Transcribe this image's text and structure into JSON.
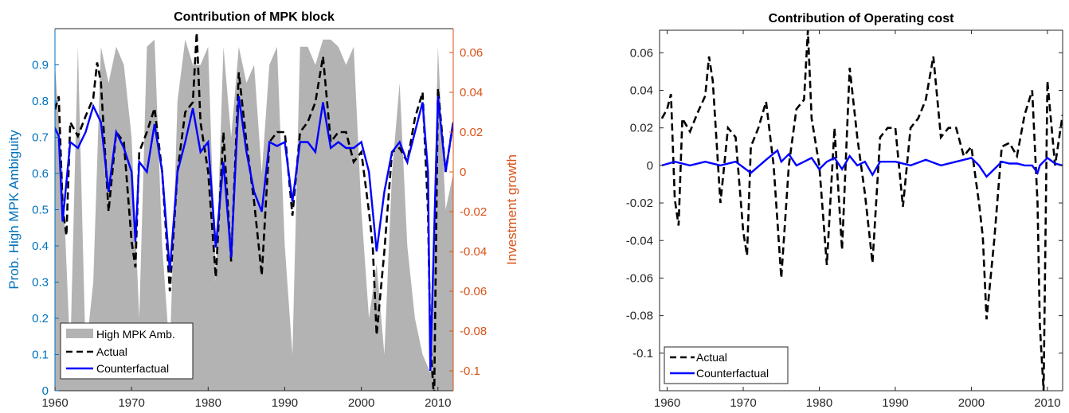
{
  "chart_data": [
    {
      "type": "area+line",
      "title": "Contribution of MPK block",
      "ylabel_left": "Prob. High MPK Ambiguity",
      "ylabel_right": "Investment growth",
      "xlim": [
        1960,
        2012
      ],
      "ylim_left": [
        0,
        1
      ],
      "ylim_right": [
        -0.11,
        0.072
      ],
      "xticks": [
        "1960",
        "1970",
        "1980",
        "1990",
        "2000",
        "2010"
      ],
      "yticks_left": [
        "0",
        "0.1",
        "0.2",
        "0.3",
        "0.4",
        "0.5",
        "0.6",
        "0.7",
        "0.8",
        "0.9"
      ],
      "yticks_right": [
        "-0.1",
        "-0.08",
        "-0.06",
        "-0.04",
        "-0.02",
        "0",
        "0.02",
        "0.04",
        "0.06"
      ],
      "colors": {
        "left_axis": "#0072BD",
        "right_axis": "#D95319",
        "area": "#B3B3B3",
        "actual": "#000000",
        "counterfactual": "#0000FF"
      },
      "legend": {
        "placement": "bottom-left",
        "entries": [
          "High MPK Amb.",
          "Actual",
          "Counterfactual"
        ]
      },
      "area_series": {
        "name": "High MPK Amb.",
        "x": [
          1960,
          1961,
          1962,
          1963,
          1964,
          1965,
          1966,
          1967,
          1968,
          1969,
          1970,
          1971,
          1972,
          1973,
          1974,
          1975,
          1976,
          1977,
          1978,
          1979,
          1980,
          1981,
          1982,
          1983,
          1984,
          1985,
          1986,
          1987,
          1988,
          1989,
          1990,
          1991,
          1992,
          1993,
          1994,
          1995,
          1996,
          1997,
          1998,
          1999,
          2000,
          2001,
          2002,
          2003,
          2004,
          2005,
          2006,
          2007,
          2008,
          2009,
          2010,
          2011,
          2012
        ],
        "values": [
          0.9,
          0.6,
          0.1,
          0.95,
          0.1,
          0.3,
          0.95,
          0.85,
          0.95,
          0.9,
          0.7,
          0.2,
          0.95,
          0.97,
          0.4,
          0.1,
          0.8,
          0.97,
          0.9,
          0.9,
          0.95,
          0.3,
          0.95,
          0.7,
          0.95,
          0.85,
          0.9,
          0.6,
          0.9,
          0.95,
          0.4,
          0.1,
          0.95,
          0.95,
          0.9,
          0.97,
          0.97,
          0.95,
          0.9,
          0.95,
          0.5,
          0.2,
          0.35,
          0.1,
          0.6,
          0.85,
          0.4,
          0.2,
          0.1,
          0.05,
          0.95,
          0.5,
          0.6
        ]
      },
      "series": [
        {
          "name": "Actual",
          "x": [
            1959.6,
            1960.5,
            1961,
            1961.5,
            1962,
            1963,
            1964,
            1965,
            1965.5,
            1966,
            1967,
            1968,
            1969,
            1970,
            1970.5,
            1971,
            1972,
            1973,
            1974,
            1975,
            1976,
            1977,
            1978,
            1978.5,
            1979,
            1980,
            1981,
            1982,
            1983,
            1984,
            1985,
            1986,
            1987,
            1988,
            1989,
            1990,
            1991,
            1992,
            1993,
            1994,
            1995,
            1996,
            1997,
            1998,
            1999,
            2000,
            2001,
            2001.5,
            2002,
            2003,
            2004,
            2005,
            2006,
            2007,
            2008,
            2008.7,
            2009,
            2009.5,
            2010,
            2011,
            2012
          ],
          "values": [
            0.026,
            0.038,
            -0.018,
            -0.032,
            0.025,
            0.018,
            0.028,
            0.037,
            0.055,
            0.045,
            -0.02,
            0.02,
            0.015,
            -0.035,
            -0.048,
            0.01,
            0.02,
            0.032,
            0.0,
            -0.06,
            0.0,
            0.03,
            0.035,
            0.07,
            0.025,
            0.0,
            -0.053,
            0.02,
            -0.045,
            0.05,
            0.015,
            -0.015,
            -0.052,
            0.015,
            0.02,
            0.02,
            -0.022,
            0.02,
            0.025,
            0.035,
            0.058,
            0.015,
            0.02,
            0.02,
            0.005,
            0.01,
            -0.02,
            -0.038,
            -0.082,
            -0.04,
            0.01,
            0.012,
            0.005,
            0.027,
            0.04,
            -0.02,
            -0.085,
            -0.115,
            0.042,
            0.0,
            0.025
          ]
        },
        {
          "name": "Counterfactual",
          "x": [
            1959.6,
            1960.5,
            1961,
            1962,
            1963,
            1964,
            1965,
            1966,
            1967,
            1968,
            1969,
            1970,
            1970.5,
            1971,
            1972,
            1973,
            1974,
            1975,
            1976,
            1977,
            1978,
            1979,
            1980,
            1981,
            1982,
            1983,
            1984,
            1985,
            1986,
            1987,
            1988,
            1989,
            1990,
            1991,
            1992,
            1993,
            1994,
            1995,
            1996,
            1997,
            1998,
            1999,
            2000,
            2001,
            2002,
            2003,
            2004,
            2005,
            2006,
            2007,
            2008,
            2008.7,
            2009,
            2010,
            2011,
            2012
          ],
          "values": [
            0.025,
            0.018,
            -0.025,
            0.015,
            0.012,
            0.02,
            0.033,
            0.025,
            -0.01,
            0.02,
            0.012,
            0.0,
            -0.035,
            0.005,
            0.0,
            0.024,
            0.0,
            -0.05,
            0.0,
            0.015,
            0.032,
            0.01,
            0.015,
            -0.038,
            0.005,
            -0.043,
            0.038,
            0.01,
            -0.01,
            -0.02,
            0.015,
            0.013,
            0.015,
            -0.015,
            0.015,
            0.015,
            0.01,
            0.035,
            0.012,
            0.015,
            0.012,
            0.012,
            0.015,
            0.0,
            -0.04,
            -0.01,
            0.01,
            0.015,
            0.005,
            0.02,
            0.035,
            0.0,
            -0.1,
            0.038,
            0.0,
            0.025
          ]
        }
      ]
    },
    {
      "type": "line",
      "title": "Contribution of Operating cost",
      "xlim": [
        1959,
        2012
      ],
      "ylim": [
        -0.12,
        0.072
      ],
      "xticks": [
        "1960",
        "1970",
        "1980",
        "1990",
        "2000",
        "2010"
      ],
      "yticks": [
        "-0.1",
        "-0.08",
        "-0.06",
        "-0.04",
        "-0.02",
        "0",
        "0.02",
        "0.04",
        "0.06"
      ],
      "colors": {
        "actual": "#000000",
        "counterfactual": "#0000FF"
      },
      "legend": {
        "placement": "bottom-left",
        "entries": [
          "Actual",
          "Counterfactual"
        ]
      },
      "series": [
        {
          "name": "Actual",
          "x": [
            1959.3,
            1960,
            1960.5,
            1961,
            1961.5,
            1962,
            1963,
            1964,
            1965,
            1965.5,
            1966,
            1967,
            1968,
            1969,
            1970,
            1970.5,
            1971,
            1972,
            1973,
            1974,
            1975,
            1976,
            1977,
            1978,
            1978.5,
            1979,
            1980,
            1981,
            1982,
            1983,
            1984,
            1985,
            1986,
            1987,
            1988,
            1989,
            1990,
            1991,
            1992,
            1993,
            1994,
            1995,
            1996,
            1997,
            1998,
            1999,
            2000,
            2001,
            2001.5,
            2002,
            2003,
            2004,
            2005,
            2006,
            2007,
            2008,
            2008.7,
            2009,
            2009.5,
            2010,
            2011,
            2012
          ],
          "values": [
            0.025,
            0.03,
            0.038,
            -0.018,
            -0.032,
            0.025,
            0.018,
            0.028,
            0.037,
            0.058,
            0.045,
            -0.02,
            0.02,
            0.015,
            -0.035,
            -0.048,
            0.01,
            0.02,
            0.034,
            0.0,
            -0.06,
            0.0,
            0.03,
            0.035,
            0.072,
            0.025,
            0.0,
            -0.053,
            0.02,
            -0.045,
            0.052,
            0.015,
            -0.015,
            -0.052,
            0.015,
            0.02,
            0.02,
            -0.022,
            0.02,
            0.025,
            0.035,
            0.058,
            0.015,
            0.02,
            0.02,
            0.005,
            0.01,
            -0.02,
            -0.038,
            -0.082,
            -0.04,
            0.01,
            0.012,
            0.005,
            0.027,
            0.04,
            -0.02,
            -0.085,
            -0.12,
            0.045,
            0.0,
            0.027
          ]
        },
        {
          "name": "Counterfactual",
          "x": [
            1959.3,
            1961,
            1963,
            1965,
            1967,
            1969,
            1971,
            1973,
            1974.5,
            1975,
            1976,
            1977,
            1978,
            1979,
            1980,
            1981,
            1982,
            1983,
            1984,
            1985,
            1986,
            1987,
            1988,
            1990,
            1992,
            1994,
            1996,
            1998,
            2000,
            2001,
            2002,
            2003,
            2004,
            2005,
            2006,
            2007,
            2008,
            2008.7,
            2009,
            2010,
            2011,
            2012
          ],
          "values": [
            0.0,
            0.002,
            0.0,
            0.002,
            0.0,
            0.002,
            -0.004,
            0.003,
            0.008,
            0.002,
            0.006,
            0.0,
            0.002,
            0.004,
            -0.002,
            0.002,
            0.004,
            -0.002,
            0.005,
            0.0,
            0.002,
            -0.005,
            0.002,
            0.002,
            0.0,
            0.003,
            0.0,
            0.002,
            0.004,
            0.0,
            -0.006,
            -0.002,
            0.002,
            0.001,
            0.001,
            0.0,
            0.0,
            -0.004,
            0.0,
            0.004,
            0.001,
            0.0
          ]
        }
      ]
    }
  ]
}
